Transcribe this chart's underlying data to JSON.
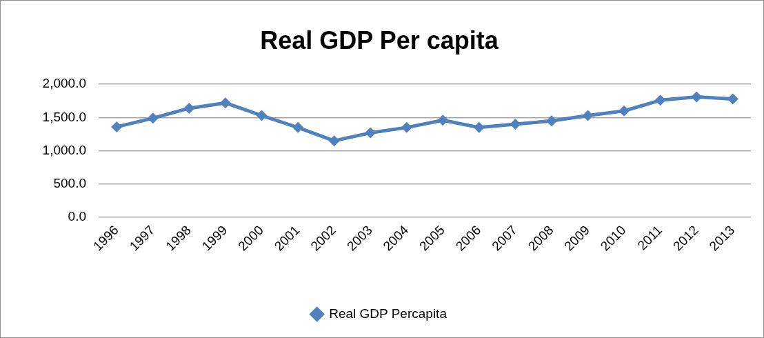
{
  "chart_data": {
    "type": "line",
    "title": "Real GDP Per capita",
    "categories": [
      "1996",
      "1997",
      "1998",
      "1999",
      "2000",
      "2001",
      "2002",
      "2003",
      "2004",
      "2005",
      "2006",
      "2007",
      "2008",
      "2009",
      "2010",
      "2011",
      "2012",
      "2013"
    ],
    "series": [
      {
        "name": "Real GDP Percapita",
        "color": "#4f81bd",
        "values": [
          1360,
          1490,
          1640,
          1720,
          1530,
          1350,
          1150,
          1270,
          1350,
          1460,
          1350,
          1400,
          1450,
          1530,
          1600,
          1760,
          1810,
          1780
        ]
      }
    ],
    "ylim": [
      0,
      2000
    ],
    "yticks": [
      {
        "value": 0,
        "label": "0.0"
      },
      {
        "value": 500,
        "label": "500.0"
      },
      {
        "value": 1000,
        "label": "1,000.0"
      },
      {
        "value": 1500,
        "label": "1,500.0"
      },
      {
        "value": 2000,
        "label": "2,000.0"
      }
    ],
    "grid": "y",
    "legend": "bottom",
    "marker": "diamond",
    "line_style": "solid"
  }
}
